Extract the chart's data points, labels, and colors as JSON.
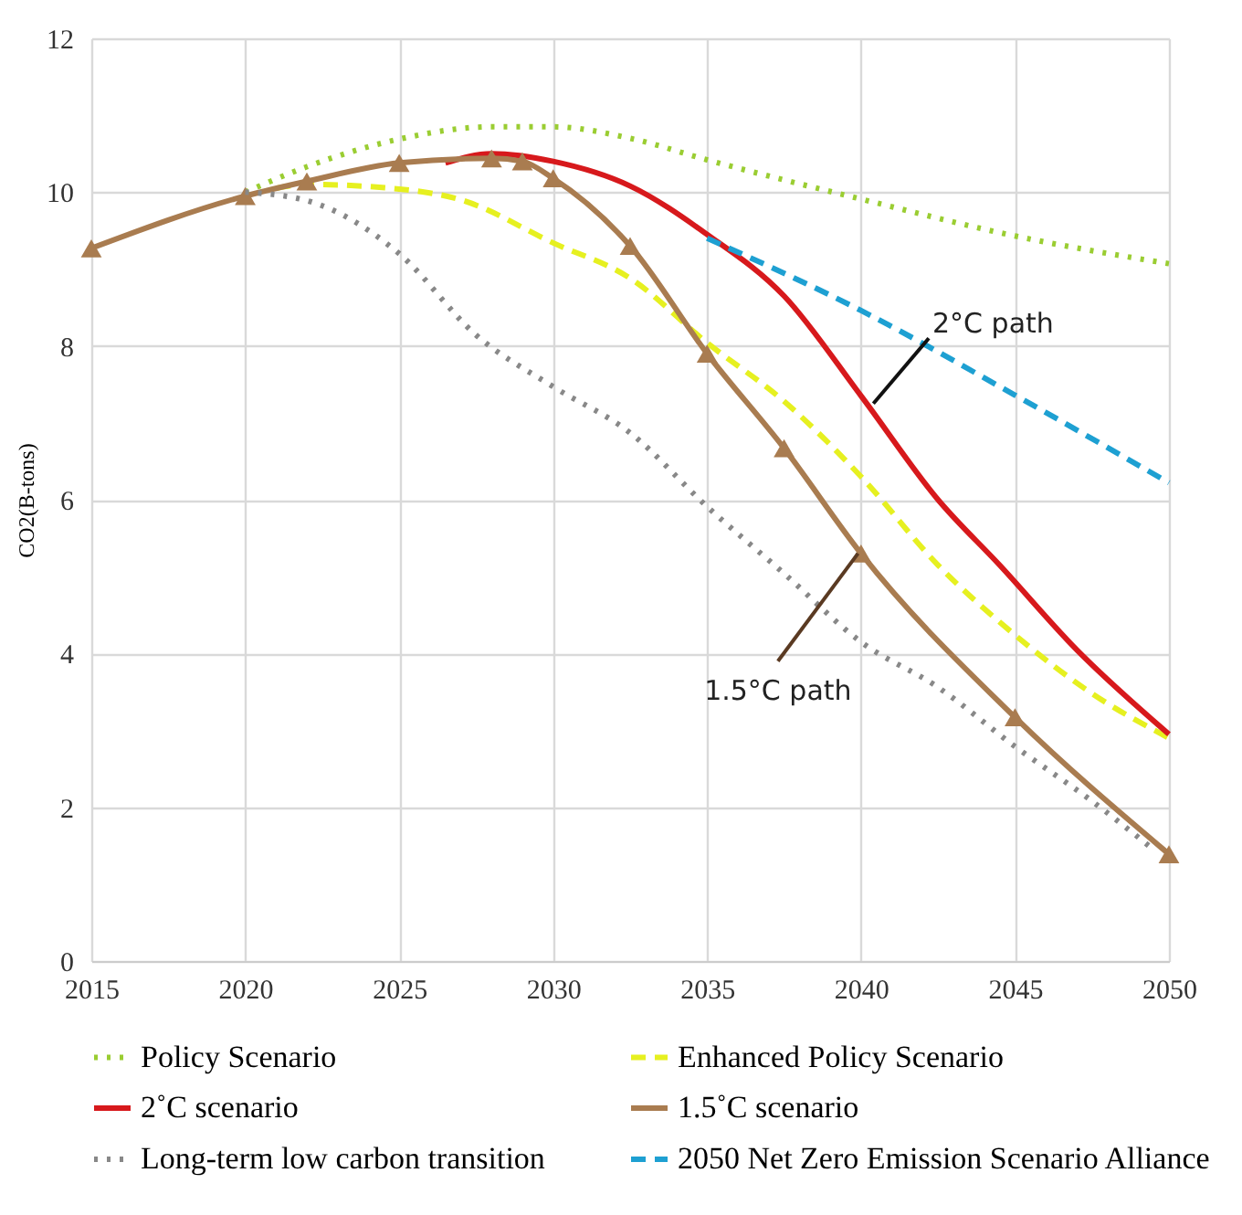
{
  "chart_data": {
    "type": "line",
    "ylabel": "CO2(B-tons)",
    "xlim": [
      2015,
      2050
    ],
    "xticks": [
      2015,
      2020,
      2025,
      2030,
      2035,
      2040,
      2045,
      2050
    ],
    "ylim": [
      0,
      12
    ],
    "yticks": [
      0,
      2,
      4,
      6,
      8,
      10,
      12
    ],
    "grid": true,
    "legend": "bottom",
    "series": [
      {
        "name": "Policy Scenario",
        "color": "#9acd32",
        "line_style": "dotted",
        "x": [
          2020,
          2022,
          2025,
          2028,
          2030,
          2032.5,
          2035,
          2040,
          2045,
          2050
        ],
        "values": [
          10.0,
          10.33,
          10.69,
          10.85,
          10.85,
          10.7,
          10.42,
          9.91,
          9.43,
          9.07
        ]
      },
      {
        "name": "Enhanced Policy Scenario",
        "color": "#e6f020",
        "line_style": "dashed",
        "x": [
          2021,
          2022,
          2025,
          2027,
          2030,
          2032.5,
          2035,
          2037.5,
          2040,
          2042.5,
          2045,
          2047.5,
          2050
        ],
        "values": [
          10.05,
          10.1,
          10.04,
          9.9,
          9.34,
          8.88,
          8.04,
          7.28,
          6.3,
          5.15,
          4.24,
          3.48,
          2.9
        ]
      },
      {
        "name": "2˚C scenario",
        "color": "#d7191c",
        "line_style": "solid",
        "x": [
          2026.5,
          2028,
          2030,
          2032.5,
          2035,
          2037.5,
          2040,
          2042.5,
          2044.5,
          2047,
          2050
        ],
        "values": [
          10.38,
          10.5,
          10.4,
          10.08,
          9.45,
          8.65,
          7.35,
          6.0,
          5.15,
          4.05,
          2.95
        ]
      },
      {
        "name": "1.5˚C scenario",
        "color": "#a97c50",
        "line_style": "solid",
        "marker": "triangle",
        "x": [
          2015,
          2020,
          2022,
          2025,
          2028,
          2029,
          2030,
          2032.5,
          2035,
          2037.5,
          2040,
          2045,
          2050
        ],
        "values": [
          9.27,
          9.95,
          10.14,
          10.38,
          10.44,
          10.4,
          10.18,
          9.3,
          7.9,
          6.67,
          5.3,
          3.17,
          1.39
        ]
      },
      {
        "name": "Long-term low carbon transition",
        "color": "#888888",
        "line_style": "dotted",
        "x": [
          2020,
          2022,
          2025,
          2027.5,
          2030,
          2032.5,
          2035,
          2037.5,
          2040,
          2042.5,
          2045,
          2047.5,
          2049.5
        ],
        "values": [
          10.0,
          9.89,
          9.2,
          8.14,
          7.47,
          6.87,
          5.91,
          5.04,
          4.15,
          3.56,
          2.79,
          2.08,
          1.45
        ]
      },
      {
        "name": "2050 Net Zero Emission Scenario Alliance",
        "color": "#1ea0d2",
        "line_style": "dashed",
        "x": [
          2035,
          2040,
          2045,
          2050
        ],
        "values": [
          9.4,
          8.46,
          7.36,
          6.22
        ]
      }
    ],
    "annotations": [
      {
        "text": "2°C path",
        "x": 2040.4,
        "y": 7.25
      },
      {
        "text": "1.5°C path",
        "x": 2039.9,
        "y": 5.3
      }
    ]
  }
}
